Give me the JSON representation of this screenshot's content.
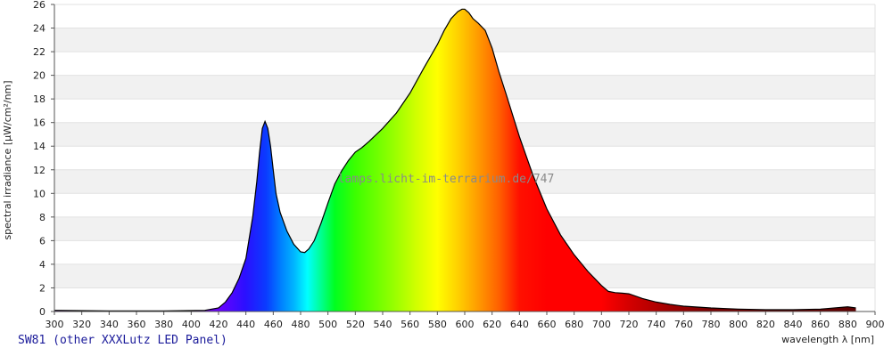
{
  "caption": "SW81 (other XXXLutz LED Panel)",
  "watermark": "lamps.licht-im-terrarium.de/747",
  "chart_data": {
    "type": "area",
    "title": "",
    "xlabel": "wavelength λ [nm]",
    "ylabel": "spectral irradiance [µW/cm²/nm]",
    "xlim": [
      300,
      900
    ],
    "ylim": [
      0,
      26
    ],
    "xticks": [
      300,
      320,
      340,
      360,
      380,
      400,
      420,
      440,
      460,
      480,
      500,
      520,
      540,
      560,
      580,
      600,
      620,
      640,
      660,
      680,
      700,
      720,
      740,
      760,
      780,
      800,
      820,
      840,
      860,
      880,
      900
    ],
    "yticks": [
      0,
      2,
      4,
      6,
      8,
      10,
      12,
      14,
      16,
      18,
      20,
      22,
      24,
      26
    ],
    "grid": "horizontal alternating bands",
    "fill": "visible spectrum color gradient",
    "series": [
      {
        "x": [
          300,
          340,
          380,
          410,
          420,
          425,
          430,
          435,
          440,
          445,
          448,
          450,
          452,
          454,
          456,
          458,
          460,
          462,
          465,
          470,
          475,
          480,
          483,
          486,
          490,
          495,
          500,
          505,
          510,
          515,
          520,
          525,
          530,
          540,
          550,
          560,
          570,
          580,
          585,
          590,
          595,
          598,
          600,
          603,
          606,
          610,
          615,
          620,
          625,
          630,
          640,
          650,
          660,
          670,
          680,
          690,
          700,
          705,
          710,
          715,
          720,
          730,
          740,
          750,
          760,
          780,
          800,
          820,
          840,
          860,
          880,
          886
        ],
        "y": [
          0.1,
          0.05,
          0.05,
          0.1,
          0.3,
          0.8,
          1.6,
          2.8,
          4.5,
          8.0,
          11.0,
          13.5,
          15.5,
          16.1,
          15.5,
          14.0,
          12.0,
          10.0,
          8.4,
          6.8,
          5.7,
          5.05,
          5.0,
          5.3,
          6.0,
          7.5,
          9.2,
          10.8,
          11.9,
          12.8,
          13.5,
          13.9,
          14.4,
          15.5,
          16.8,
          18.5,
          20.6,
          22.6,
          23.8,
          24.8,
          25.4,
          25.6,
          25.6,
          25.3,
          24.8,
          24.4,
          23.8,
          22.3,
          20.3,
          18.5,
          14.8,
          11.5,
          8.7,
          6.5,
          4.8,
          3.4,
          2.2,
          1.7,
          1.6,
          1.55,
          1.5,
          1.1,
          0.8,
          0.6,
          0.45,
          0.3,
          0.2,
          0.15,
          0.15,
          0.2,
          0.4,
          0.3
        ]
      }
    ]
  }
}
